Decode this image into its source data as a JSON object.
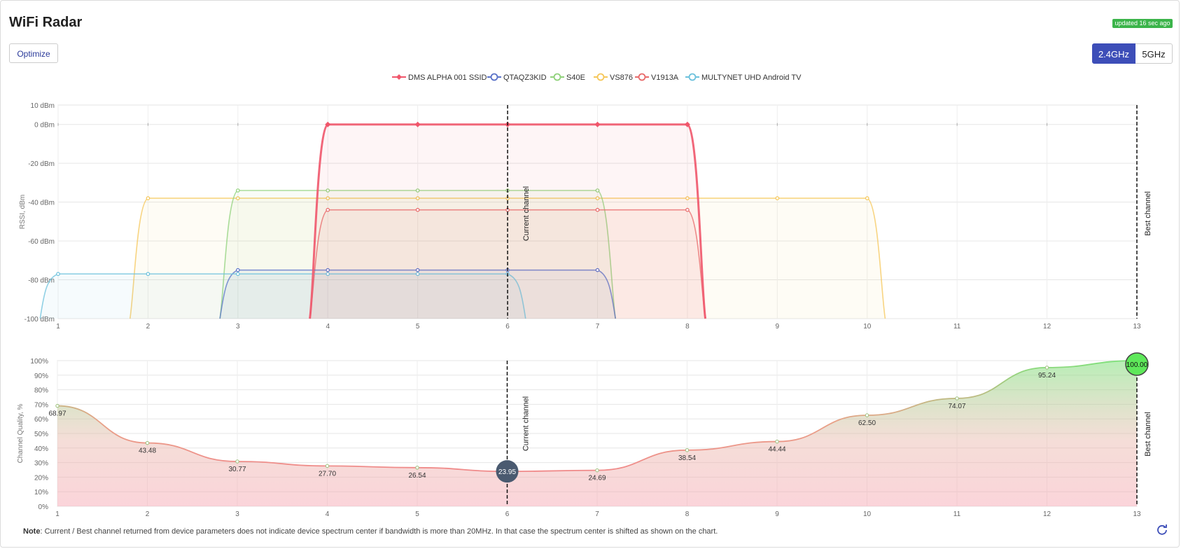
{
  "header": {
    "title": "WiFi Radar",
    "updated": "updated 16 sec ago",
    "optimize_label": "Optimize"
  },
  "bands": [
    {
      "label": "2.4GHz",
      "active": true
    },
    {
      "label": "5GHz",
      "active": false
    }
  ],
  "colors": {
    "accent": "#3d4eb8",
    "updated_badge": "#3bb44a",
    "current_marker": "#4a5a70",
    "best_marker": "#5ee85a"
  },
  "chart_data": [
    {
      "type": "area",
      "ylabel": "RSSI, dBm",
      "yticks": [
        "10 dBm",
        "0 dBm",
        "-20 dBm",
        "-40 dBm",
        "-60 dBm",
        "-80 dBm",
        "-100 dBm"
      ],
      "xlim": [
        1,
        13
      ],
      "ylim": [
        -100,
        10
      ],
      "x_ticks": [
        1,
        2,
        3,
        4,
        5,
        6,
        7,
        8,
        9,
        10,
        11,
        12,
        13
      ],
      "legend_position": "top-center",
      "series": [
        {
          "name": "DMS ALPHA 001 SSID",
          "color": "#f0566b",
          "rssi": 0,
          "x": [
            4,
            5,
            6,
            7,
            8
          ]
        },
        {
          "name": "QTAQZ3KID",
          "color": "#5a72c8",
          "rssi": -75,
          "x": [
            3,
            4,
            5,
            6,
            7
          ]
        },
        {
          "name": "S40E",
          "color": "#8fd17a",
          "rssi": -34,
          "x": [
            3,
            4,
            5,
            6,
            7
          ]
        },
        {
          "name": "VS876",
          "color": "#f5c75a",
          "rssi": -38,
          "x": [
            2,
            3,
            4,
            5,
            6,
            7,
            8,
            9,
            10
          ]
        },
        {
          "name": "V1913A",
          "color": "#e86a6a",
          "rssi": -44,
          "x": [
            4,
            5,
            6,
            7,
            8
          ]
        },
        {
          "name": "MULTYNET UHD Android TV",
          "color": "#6cc1dc",
          "rssi": -77,
          "x": [
            1,
            2,
            3,
            4,
            5,
            6
          ]
        }
      ],
      "annotations": {
        "current_channel": 6,
        "current_label": "Current channel",
        "best_channel": 13,
        "best_label": "Best channel"
      }
    },
    {
      "type": "line",
      "ylabel": "Channel Quality, %",
      "yticks": [
        "100%",
        "90%",
        "80%",
        "70%",
        "60%",
        "50%",
        "40%",
        "30%",
        "20%",
        "10%",
        "0%"
      ],
      "xlim": [
        1,
        13
      ],
      "ylim": [
        0,
        100
      ],
      "x": [
        1,
        2,
        3,
        4,
        5,
        6,
        7,
        8,
        9,
        10,
        11,
        12,
        13
      ],
      "values": [
        68.97,
        43.48,
        30.77,
        27.7,
        26.54,
        23.95,
        24.69,
        38.54,
        44.44,
        62.5,
        74.07,
        95.24,
        100.0
      ],
      "labels": [
        "68.97",
        "43.48",
        "30.77",
        "27.70",
        "26.54",
        "23.95",
        "24.69",
        "38.54",
        "44.44",
        "62.50",
        "74.07",
        "95.24",
        "100.00"
      ],
      "annotations": {
        "current_channel": 6,
        "current_label": "Current channel",
        "best_channel": 13,
        "best_label": "Best channel"
      }
    }
  ],
  "note": {
    "label": "Note",
    "text": ": Current / Best channel returned from device parameters does not indicate device spectrum center if bandwidth is more than 20MHz. In that case the spectrum center is shifted as shown on the chart."
  }
}
